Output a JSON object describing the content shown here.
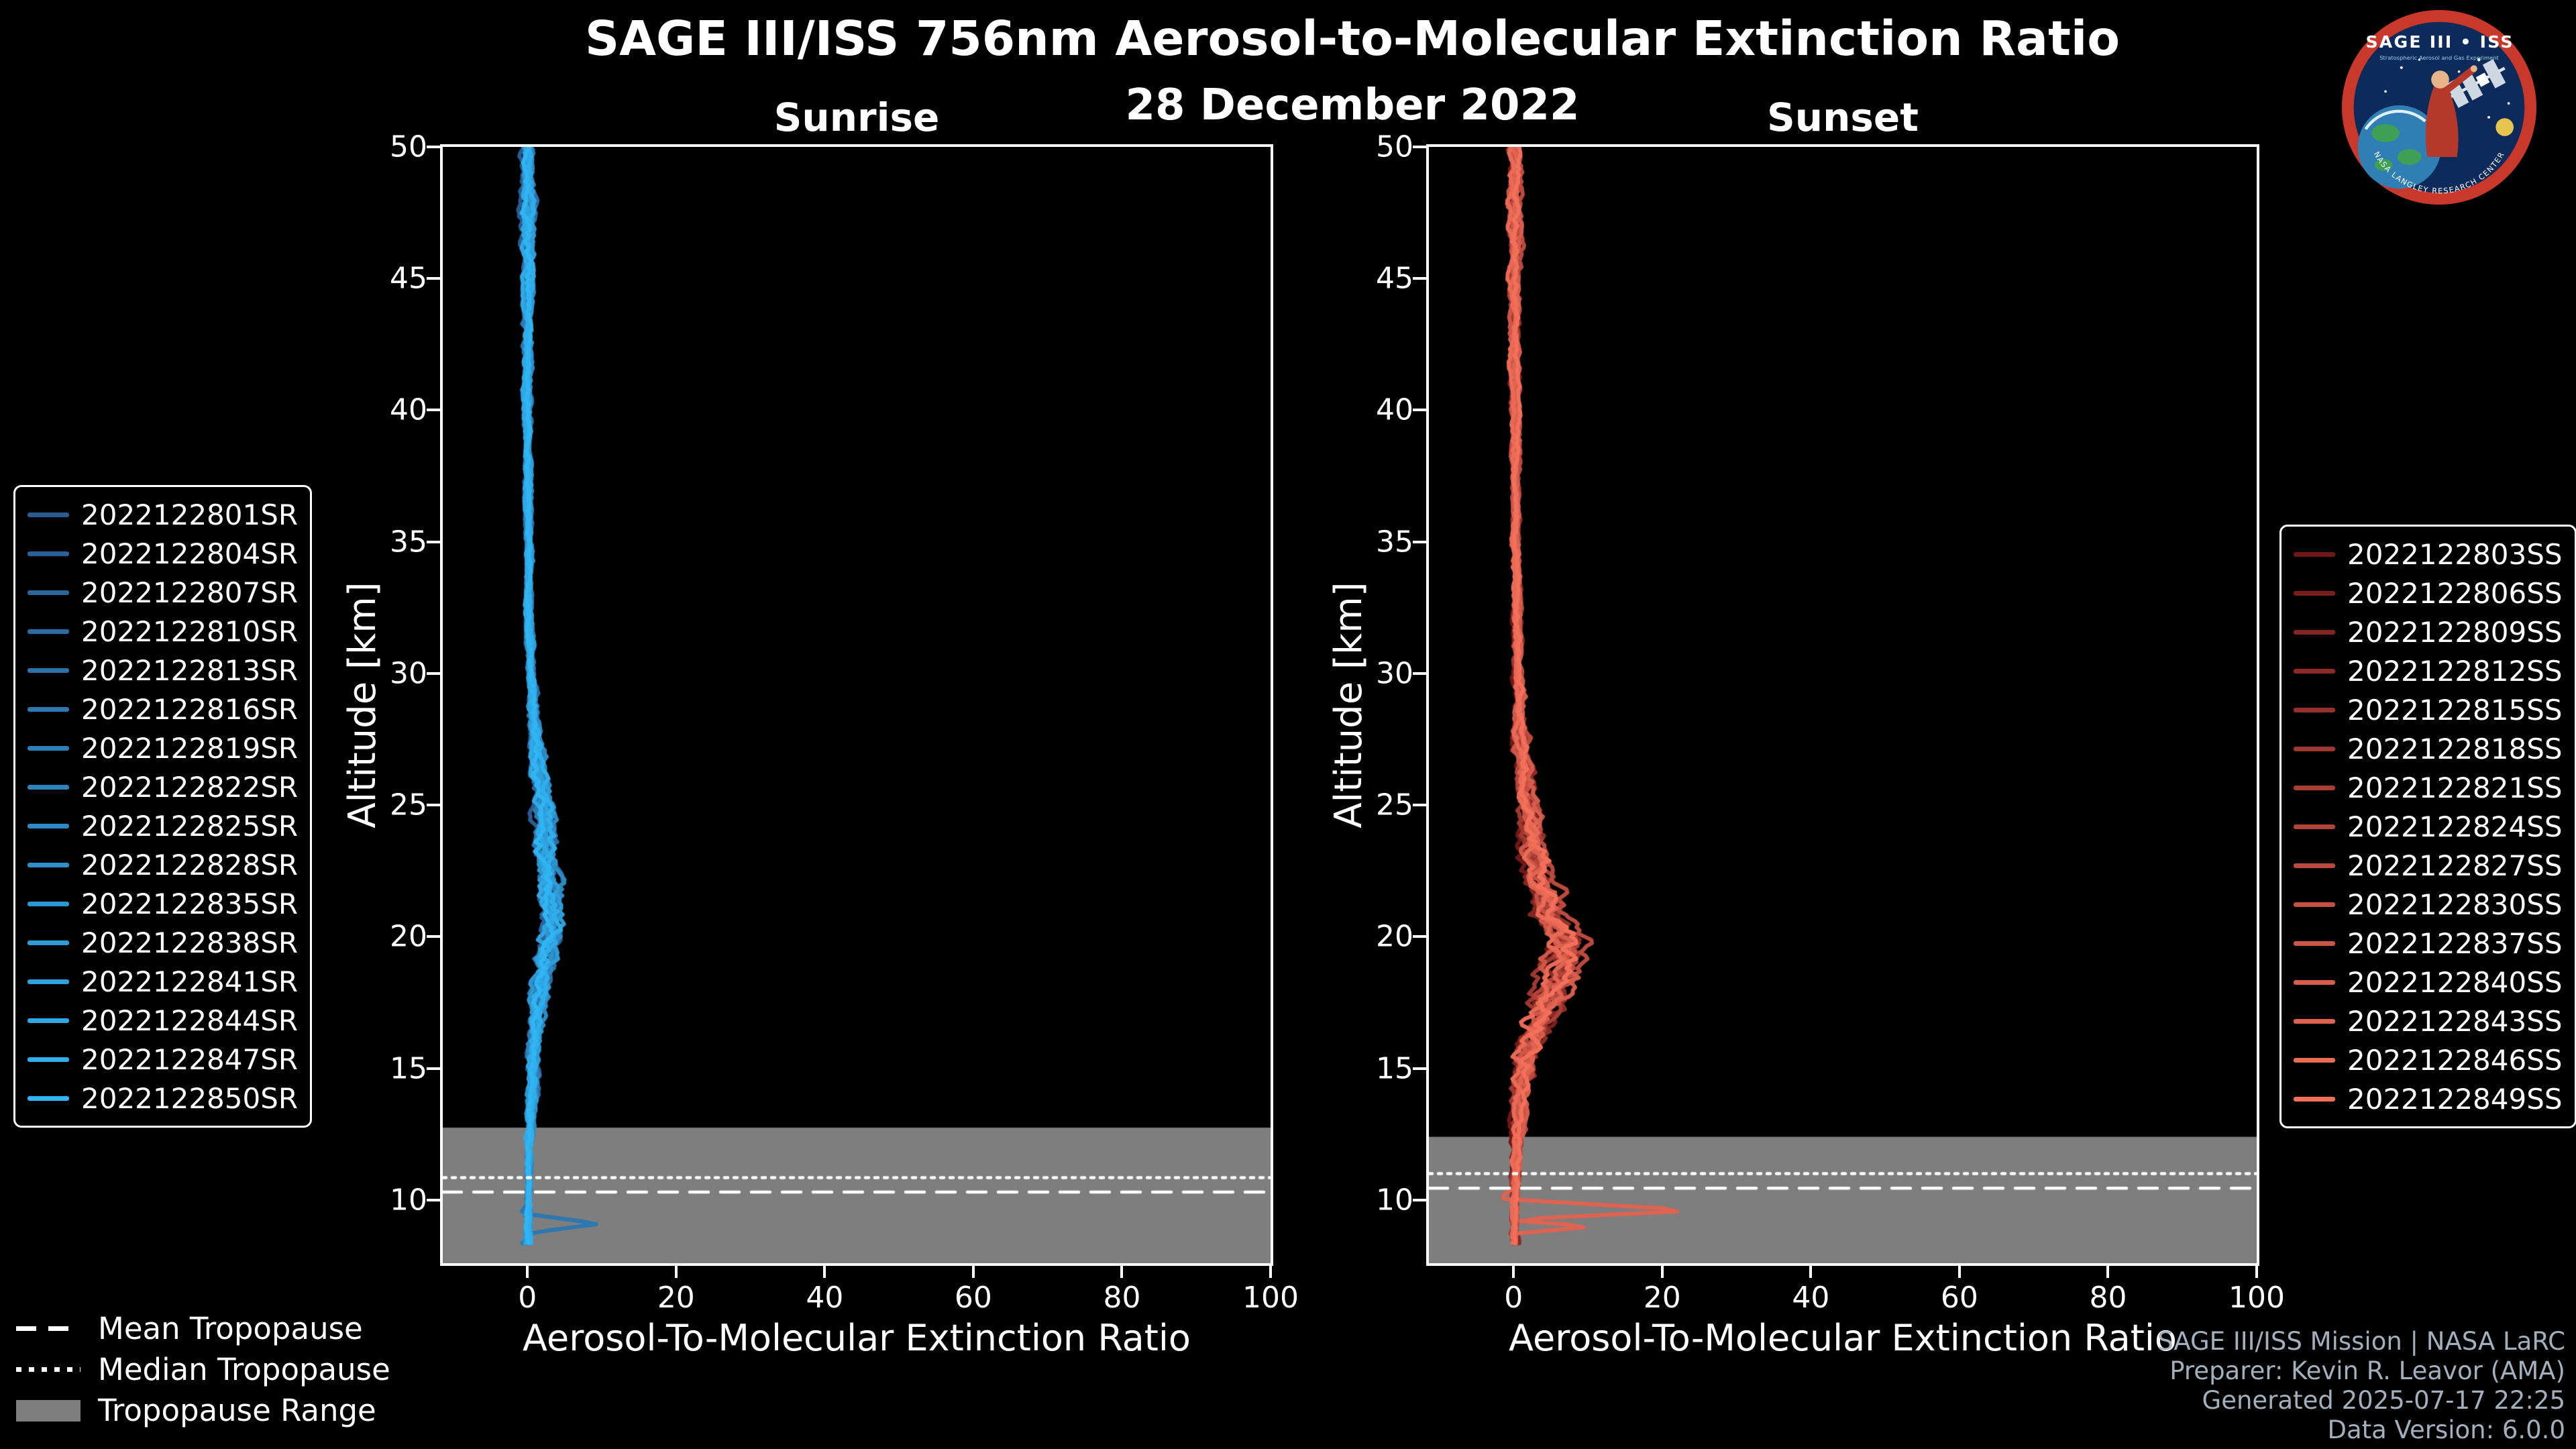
{
  "header": {
    "title": "SAGE III/ISS 756nm Aerosol-to-Molecular Extinction Ratio",
    "date": "28 December 2022"
  },
  "logo": {
    "title": "SAGE III • ISS",
    "subtitle": "Stratospheric Aerosol and Gas Experiment",
    "arc_text": "NASA LANGLEY RESEARCH CENTER",
    "ring_color": "#c9392b",
    "bg_color": "#0c2a5a"
  },
  "credits": {
    "lines": [
      "SAGE III/ISS Mission | NASA LaRC",
      "Preparer: Kevin R. Leavor (AMA)",
      "Generated 2025-07-17 22:25",
      "Data Version: 6.0.0"
    ],
    "color": "#a2b0bd"
  },
  "tropopause_legend": {
    "items": [
      {
        "label": "Mean Tropopause",
        "style": "dashed"
      },
      {
        "label": "Median Tropopause",
        "style": "dotted"
      },
      {
        "label": "Tropopause Range",
        "style": "band"
      }
    ]
  },
  "colors": {
    "background": "#000000",
    "text": "#ffffff",
    "band": "#7e7e7e"
  },
  "chart_data": [
    {
      "type": "line",
      "panel": "sunrise",
      "title": "Sunrise",
      "xlabel": "Aerosol-To-Molecular Extinction Ratio",
      "ylabel": "Altitude [km]",
      "xlim": [
        -11.4,
        100
      ],
      "ylim": [
        7.6,
        50
      ],
      "xticks": [
        0,
        20,
        40,
        60,
        80,
        100
      ],
      "yticks": [
        10,
        15,
        20,
        25,
        30,
        35,
        40,
        45,
        50
      ],
      "color_start": "#2a5a8e",
      "color_end": "#30b4f2",
      "line_width": 6,
      "tropopause": {
        "mean": 10.3,
        "median": 10.85,
        "range_top": 12.75,
        "range_bottom": 7.6
      },
      "base_profile": [
        [
          50,
          0.2
        ],
        [
          47,
          0.2
        ],
        [
          44,
          0.1
        ],
        [
          40,
          0.1
        ],
        [
          36,
          0.2
        ],
        [
          32,
          0.3
        ],
        [
          30,
          0.5
        ],
        [
          28,
          1.0
        ],
        [
          26.5,
          1.5
        ],
        [
          25.5,
          2.0
        ],
        [
          24.5,
          2.3
        ],
        [
          23.5,
          2.4
        ],
        [
          22.5,
          2.7
        ],
        [
          21.5,
          3.0
        ],
        [
          20.8,
          3.3
        ],
        [
          20.2,
          3.4
        ],
        [
          19.6,
          2.9
        ],
        [
          19,
          2.4
        ],
        [
          18,
          1.7
        ],
        [
          17,
          1.3
        ],
        [
          16,
          1.1
        ],
        [
          15,
          0.9
        ],
        [
          14,
          0.7
        ],
        [
          13,
          0.5
        ],
        [
          12,
          0.35
        ],
        [
          11,
          0.2
        ],
        [
          10,
          0.15
        ],
        [
          9,
          0.1
        ],
        [
          8.4,
          0.1
        ]
      ],
      "spread_profile": [
        [
          50,
          0.7
        ],
        [
          46,
          0.6
        ],
        [
          42,
          0.45
        ],
        [
          36,
          0.35
        ],
        [
          30,
          0.4
        ],
        [
          27,
          0.7
        ],
        [
          24,
          1.0
        ],
        [
          21,
          1.2
        ],
        [
          20,
          1.2
        ],
        [
          18,
          0.9
        ],
        [
          15,
          0.6
        ],
        [
          12,
          0.3
        ],
        [
          10,
          0.25
        ],
        [
          8.4,
          0.3
        ]
      ],
      "series": [
        {
          "name": "2022122801SR"
        },
        {
          "name": "2022122804SR"
        },
        {
          "name": "2022122807SR"
        },
        {
          "name": "2022122810SR"
        },
        {
          "name": "2022122813SR"
        },
        {
          "name": "2022122816SR",
          "anomaly": [
            [
              9.9,
              0.2
            ],
            [
              9.5,
              -1.0
            ],
            [
              9.1,
              9.8
            ],
            [
              8.75,
              0.3
            ],
            [
              8.4,
              -0.6
            ]
          ]
        },
        {
          "name": "2022122819SR"
        },
        {
          "name": "2022122822SR"
        },
        {
          "name": "2022122825SR"
        },
        {
          "name": "2022122828SR"
        },
        {
          "name": "2022122835SR"
        },
        {
          "name": "2022122838SR"
        },
        {
          "name": "2022122841SR"
        },
        {
          "name": "2022122844SR"
        },
        {
          "name": "2022122847SR"
        },
        {
          "name": "2022122850SR"
        }
      ]
    },
    {
      "type": "line",
      "panel": "sunset",
      "title": "Sunset",
      "xlabel": "Aerosol-To-Molecular Extinction Ratio",
      "ylabel": "Altitude [km]",
      "xlim": [
        -11.4,
        100
      ],
      "ylim": [
        7.6,
        50
      ],
      "xticks": [
        0,
        20,
        40,
        60,
        80,
        100
      ],
      "yticks": [
        10,
        15,
        20,
        25,
        30,
        35,
        40,
        45,
        50
      ],
      "color_start": "#701818",
      "color_end": "#f2705a",
      "line_width": 6,
      "tropopause": {
        "mean": 10.45,
        "median": 11.0,
        "range_top": 12.4,
        "range_bottom": 7.6
      },
      "base_profile": [
        [
          50,
          0.2
        ],
        [
          46,
          0.2
        ],
        [
          42,
          0.2
        ],
        [
          38,
          0.3
        ],
        [
          34,
          0.4
        ],
        [
          30,
          0.6
        ],
        [
          28,
          1.0
        ],
        [
          26,
          1.6
        ],
        [
          24.5,
          2.3
        ],
        [
          23,
          3.2
        ],
        [
          22,
          3.9
        ],
        [
          21,
          5.0
        ],
        [
          20.4,
          6.2
        ],
        [
          19.9,
          7.3
        ],
        [
          19.4,
          7.2
        ],
        [
          18.9,
          6.3
        ],
        [
          18.4,
          5.8
        ],
        [
          17.8,
          5.0
        ],
        [
          17.2,
          4.3
        ],
        [
          16.5,
          3.2
        ],
        [
          15.8,
          2.2
        ],
        [
          15,
          1.6
        ],
        [
          14,
          1.0
        ],
        [
          13,
          0.7
        ],
        [
          12,
          0.45
        ],
        [
          11,
          0.3
        ],
        [
          10,
          0.2
        ],
        [
          9,
          0.15
        ],
        [
          8.4,
          0.1
        ]
      ],
      "spread_profile": [
        [
          50,
          0.7
        ],
        [
          45,
          0.55
        ],
        [
          40,
          0.45
        ],
        [
          34,
          0.4
        ],
        [
          30,
          0.5
        ],
        [
          26,
          0.9
        ],
        [
          23,
          1.4
        ],
        [
          21,
          1.8
        ],
        [
          20,
          2.0
        ],
        [
          19,
          2.0
        ],
        [
          17.5,
          1.8
        ],
        [
          16,
          1.4
        ],
        [
          14,
          0.8
        ],
        [
          12,
          0.45
        ],
        [
          10,
          0.35
        ],
        [
          8.4,
          0.35
        ]
      ],
      "series": [
        {
          "name": "2022122803SS"
        },
        {
          "name": "2022122806SS"
        },
        {
          "name": "2022122809SS"
        },
        {
          "name": "2022122812SS"
        },
        {
          "name": "2022122815SS"
        },
        {
          "name": "2022122818SS"
        },
        {
          "name": "2022122821SS"
        },
        {
          "name": "2022122824SS"
        },
        {
          "name": "2022122827SS"
        },
        {
          "name": "2022122830SS"
        },
        {
          "name": "2022122837SS"
        },
        {
          "name": "2022122840SS"
        },
        {
          "name": "2022122843SS",
          "anomaly": [
            [
              10.5,
              0.3
            ],
            [
              10.05,
              -2.0
            ],
            [
              9.6,
              25.0
            ],
            [
              9.25,
              -1.5
            ],
            [
              9.0,
              11.0
            ],
            [
              8.7,
              -0.5
            ],
            [
              8.4,
              0.2
            ]
          ]
        },
        {
          "name": "2022122846SS"
        },
        {
          "name": "2022122849SS"
        }
      ]
    }
  ]
}
